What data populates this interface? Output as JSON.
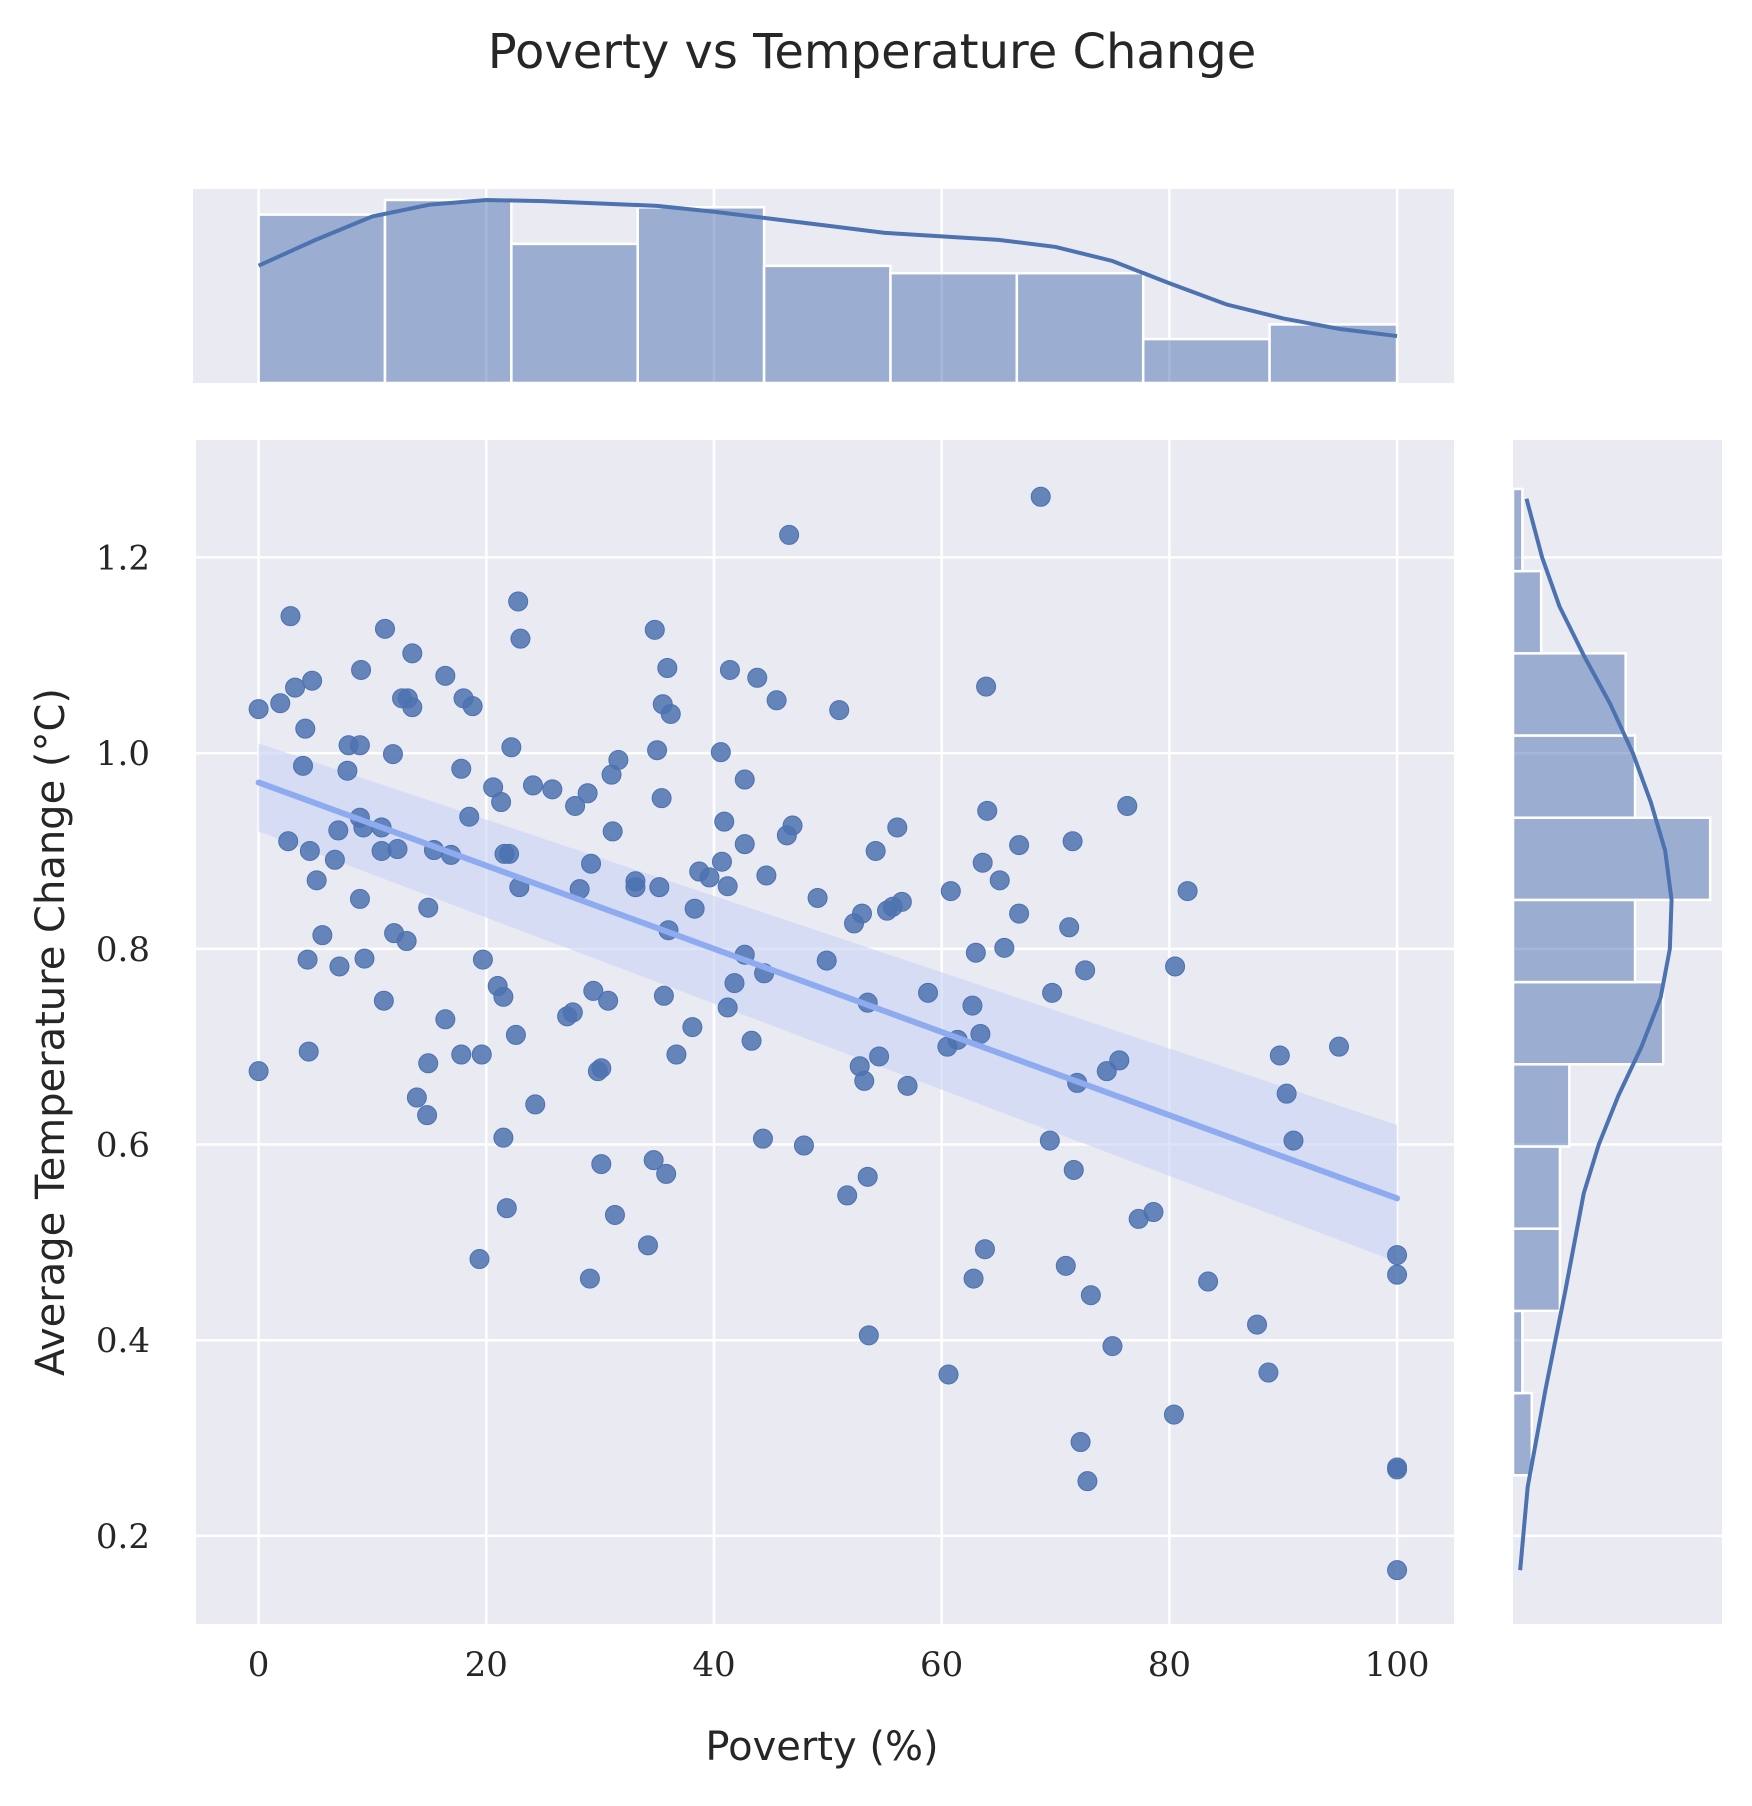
{
  "chart_data": {
    "type": "scatter",
    "title": "Poverty vs Temperature Change",
    "xlabel": "Poverty (%)",
    "ylabel": "Average Temperature Change (°C)",
    "xlim": [
      -5.5,
      105
    ],
    "ylim": [
      0.11,
      1.32
    ],
    "xticks": [
      0,
      20,
      40,
      60,
      80,
      100
    ],
    "yticks": [
      0.2,
      0.4,
      0.6,
      0.8,
      1.0,
      1.2
    ],
    "xtick_labels": [
      "0",
      "20",
      "40",
      "60",
      "80",
      "100"
    ],
    "ytick_labels": [
      "0.2",
      "0.4",
      "0.6",
      "0.8",
      "1.0",
      "1.2"
    ],
    "grid": true,
    "colors": {
      "background": "#eaeaf2",
      "grid": "#ffffff",
      "points": "#4c72b0",
      "regression_line": "#8fabf0",
      "confidence_band": "#c6d2f3",
      "histogram": "#4c72b0",
      "kde": "#4c72b0"
    },
    "points": [
      [
        0.0,
        1.045
      ],
      [
        0.0,
        0.675
      ],
      [
        1.9,
        1.051
      ],
      [
        2.6,
        0.91
      ],
      [
        2.8,
        1.14
      ],
      [
        3.2,
        1.067
      ],
      [
        3.9,
        0.987
      ],
      [
        4.1,
        1.025
      ],
      [
        4.3,
        0.789
      ],
      [
        4.4,
        0.695
      ],
      [
        4.5,
        0.9
      ],
      [
        4.7,
        1.074
      ],
      [
        5.1,
        0.87
      ],
      [
        5.6,
        0.814
      ],
      [
        6.7,
        0.891
      ],
      [
        7.0,
        0.921
      ],
      [
        7.1,
        0.782
      ],
      [
        7.8,
        0.982
      ],
      [
        7.9,
        1.008
      ],
      [
        8.9,
        0.851
      ],
      [
        8.9,
        1.008
      ],
      [
        8.9,
        0.934
      ],
      [
        9.0,
        1.085
      ],
      [
        9.2,
        0.924
      ],
      [
        9.3,
        0.79
      ],
      [
        10.8,
        0.924
      ],
      [
        10.8,
        0.9
      ],
      [
        11.0,
        0.747
      ],
      [
        11.1,
        1.127
      ],
      [
        11.8,
        0.999
      ],
      [
        11.9,
        0.816
      ],
      [
        12.2,
        0.902
      ],
      [
        12.6,
        1.056
      ],
      [
        13.0,
        0.808
      ],
      [
        13.1,
        1.056
      ],
      [
        13.5,
        1.047
      ],
      [
        13.5,
        1.102
      ],
      [
        13.9,
        0.648
      ],
      [
        14.8,
        0.63
      ],
      [
        14.9,
        0.683
      ],
      [
        14.9,
        0.842
      ],
      [
        15.4,
        0.901
      ],
      [
        16.4,
        0.728
      ],
      [
        16.4,
        1.079
      ],
      [
        16.9,
        0.896
      ],
      [
        17.8,
        0.692
      ],
      [
        17.8,
        0.984
      ],
      [
        18.0,
        1.056
      ],
      [
        18.5,
        0.935
      ],
      [
        18.8,
        1.048
      ],
      [
        19.4,
        0.483
      ],
      [
        19.6,
        0.692
      ],
      [
        19.7,
        0.789
      ],
      [
        20.6,
        0.965
      ],
      [
        21.0,
        0.762
      ],
      [
        21.3,
        0.95
      ],
      [
        21.5,
        0.607
      ],
      [
        21.5,
        0.751
      ],
      [
        21.6,
        0.897
      ],
      [
        21.8,
        0.535
      ],
      [
        22.0,
        0.897
      ],
      [
        22.2,
        1.006
      ],
      [
        22.6,
        0.712
      ],
      [
        22.8,
        1.155
      ],
      [
        22.9,
        0.863
      ],
      [
        23.0,
        1.117
      ],
      [
        24.1,
        0.967
      ],
      [
        24.3,
        0.641
      ],
      [
        25.8,
        0.963
      ],
      [
        27.1,
        0.731
      ],
      [
        27.6,
        0.735
      ],
      [
        27.8,
        0.946
      ],
      [
        28.2,
        0.861
      ],
      [
        28.9,
        0.959
      ],
      [
        29.1,
        0.463
      ],
      [
        29.2,
        0.887
      ],
      [
        29.4,
        0.757
      ],
      [
        29.8,
        0.675
      ],
      [
        30.1,
        0.678
      ],
      [
        30.1,
        0.58
      ],
      [
        30.7,
        0.747
      ],
      [
        31.0,
        0.978
      ],
      [
        31.1,
        0.92
      ],
      [
        31.3,
        0.528
      ],
      [
        31.6,
        0.993
      ],
      [
        33.1,
        0.869
      ],
      [
        33.1,
        0.863
      ],
      [
        34.2,
        0.497
      ],
      [
        34.7,
        0.584
      ],
      [
        34.8,
        1.126
      ],
      [
        35.0,
        1.003
      ],
      [
        35.2,
        0.863
      ],
      [
        35.4,
        0.954
      ],
      [
        35.5,
        1.05
      ],
      [
        35.6,
        0.752
      ],
      [
        35.8,
        0.57
      ],
      [
        35.9,
        1.087
      ],
      [
        36.0,
        0.819
      ],
      [
        36.2,
        1.04
      ],
      [
        36.7,
        0.692
      ],
      [
        38.1,
        0.72
      ],
      [
        38.3,
        0.841
      ],
      [
        38.7,
        0.879
      ],
      [
        39.6,
        0.873
      ],
      [
        40.6,
        1.001
      ],
      [
        40.7,
        0.889
      ],
      [
        40.9,
        0.93
      ],
      [
        41.2,
        0.864
      ],
      [
        41.2,
        0.74
      ],
      [
        41.4,
        1.085
      ],
      [
        41.8,
        0.765
      ],
      [
        42.7,
        0.907
      ],
      [
        42.7,
        0.973
      ],
      [
        42.7,
        0.794
      ],
      [
        43.3,
        0.706
      ],
      [
        43.8,
        1.077
      ],
      [
        44.3,
        0.606
      ],
      [
        44.4,
        0.775
      ],
      [
        44.6,
        0.875
      ],
      [
        45.5,
        1.054
      ],
      [
        46.4,
        0.916
      ],
      [
        46.6,
        1.223
      ],
      [
        46.9,
        0.926
      ],
      [
        47.9,
        0.599
      ],
      [
        49.1,
        0.852
      ],
      [
        49.9,
        0.788
      ],
      [
        51.0,
        1.044
      ],
      [
        51.7,
        0.548
      ],
      [
        52.3,
        0.826
      ],
      [
        52.8,
        0.68
      ],
      [
        53.0,
        0.836
      ],
      [
        53.2,
        0.665
      ],
      [
        53.5,
        0.745
      ],
      [
        53.5,
        0.567
      ],
      [
        53.6,
        0.405
      ],
      [
        54.2,
        0.9
      ],
      [
        54.5,
        0.69
      ],
      [
        55.2,
        0.839
      ],
      [
        55.7,
        0.843
      ],
      [
        56.1,
        0.924
      ],
      [
        56.5,
        0.848
      ],
      [
        57.0,
        0.66
      ],
      [
        58.8,
        0.755
      ],
      [
        60.5,
        0.7
      ],
      [
        60.6,
        0.365
      ],
      [
        60.8,
        0.859
      ],
      [
        61.4,
        0.707
      ],
      [
        62.7,
        0.742
      ],
      [
        62.8,
        0.463
      ],
      [
        63.0,
        0.796
      ],
      [
        63.4,
        0.713
      ],
      [
        63.6,
        0.888
      ],
      [
        63.8,
        0.493
      ],
      [
        63.9,
        1.068
      ],
      [
        64.0,
        0.941
      ],
      [
        65.1,
        0.87
      ],
      [
        65.5,
        0.801
      ],
      [
        66.8,
        0.906
      ],
      [
        66.8,
        0.836
      ],
      [
        68.7,
        1.262
      ],
      [
        69.5,
        0.604
      ],
      [
        69.7,
        0.755
      ],
      [
        70.9,
        0.476
      ],
      [
        71.2,
        0.822
      ],
      [
        71.5,
        0.91
      ],
      [
        71.6,
        0.574
      ],
      [
        71.9,
        0.663
      ],
      [
        72.2,
        0.296
      ],
      [
        72.6,
        0.778
      ],
      [
        72.8,
        0.256
      ],
      [
        73.1,
        0.446
      ],
      [
        74.5,
        0.675
      ],
      [
        75.0,
        0.394
      ],
      [
        75.6,
        0.686
      ],
      [
        76.3,
        0.946
      ],
      [
        77.3,
        0.524
      ],
      [
        78.6,
        0.531
      ],
      [
        80.4,
        0.324
      ],
      [
        80.5,
        0.782
      ],
      [
        81.6,
        0.859
      ],
      [
        83.4,
        0.46
      ],
      [
        87.7,
        0.416
      ],
      [
        88.7,
        0.367
      ],
      [
        89.7,
        0.691
      ],
      [
        90.3,
        0.652
      ],
      [
        90.9,
        0.604
      ],
      [
        94.9,
        0.7
      ],
      [
        100.0,
        0.487
      ],
      [
        100.0,
        0.467
      ],
      [
        100.0,
        0.268
      ],
      [
        100.0,
        0.27
      ],
      [
        100.0,
        0.165
      ]
    ],
    "regression": {
      "x": [
        0,
        100
      ],
      "y": [
        0.97,
        0.545
      ],
      "ci_lower": [
        0.92,
        0.48
      ],
      "ci_upper": [
        1.01,
        0.62
      ]
    },
    "x_histogram": {
      "bin_edges": [
        0,
        11.1,
        22.2,
        33.3,
        44.4,
        55.5,
        66.6,
        77.7,
        88.8,
        100
      ],
      "counts": [
        23,
        25,
        19,
        24,
        16,
        15,
        15,
        6,
        8
      ],
      "kde_x": [
        0,
        5,
        10,
        15,
        20,
        25,
        30,
        35,
        40,
        45,
        50,
        55,
        60,
        65,
        70,
        75,
        80,
        85,
        90,
        95,
        100
      ],
      "kde_y": [
        1.0,
        1.22,
        1.42,
        1.52,
        1.56,
        1.55,
        1.53,
        1.51,
        1.46,
        1.4,
        1.34,
        1.28,
        1.25,
        1.22,
        1.16,
        1.04,
        0.85,
        0.67,
        0.55,
        0.46,
        0.4
      ]
    },
    "y_histogram": {
      "bin_edges": [
        0.262,
        0.346,
        0.43,
        0.514,
        0.598,
        0.682,
        0.766,
        0.85,
        0.934,
        1.018,
        1.102,
        1.186,
        1.27
      ],
      "counts": [
        2,
        1,
        5,
        5,
        6,
        16,
        13,
        21,
        13,
        12,
        3,
        1
      ],
      "kde_y": [
        0.165,
        0.25,
        0.35,
        0.45,
        0.55,
        0.6,
        0.65,
        0.7,
        0.75,
        0.8,
        0.85,
        0.9,
        0.95,
        1.0,
        1.05,
        1.1,
        1.15,
        1.2,
        1.26
      ],
      "kde_x": [
        0.02,
        0.15,
        0.46,
        0.8,
        1.12,
        1.38,
        1.72,
        2.12,
        2.45,
        2.61,
        2.64,
        2.53,
        2.28,
        1.97,
        1.58,
        1.12,
        0.7,
        0.4,
        0.13
      ]
    }
  }
}
